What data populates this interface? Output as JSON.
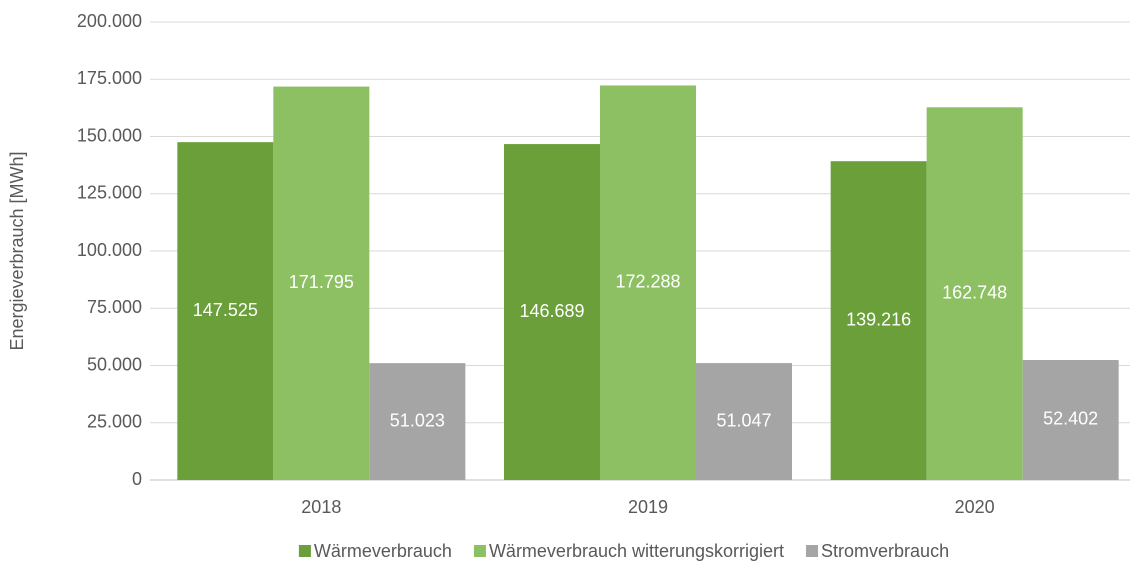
{
  "chart_data": {
    "type": "bar",
    "y_label": "Energieverbrauch [MWh]",
    "categories": [
      "2018",
      "2019",
      "2020"
    ],
    "series": [
      {
        "name": "Wärmeverbrauch",
        "color": "#6a9f3a",
        "values": [
          147525,
          146689,
          139216
        ],
        "value_labels": [
          "147.525",
          "146.689",
          "139.216"
        ]
      },
      {
        "name": "Wärmeverbrauch witterungskorrigiert",
        "color": "#8cc063",
        "values": [
          171795,
          172288,
          162748
        ],
        "value_labels": [
          "171.795",
          "172.288",
          "162.748"
        ]
      },
      {
        "name": "Stromverbrauch",
        "color": "#a5a5a5",
        "values": [
          51023,
          51047,
          52402
        ],
        "value_labels": [
          "51.023",
          "51.047",
          "52.402"
        ]
      }
    ],
    "ylim": [
      0,
      200000
    ],
    "yticks": [
      0,
      {
        "value": 25000,
        "label": "25.000"
      },
      {
        "value": 50000,
        "label": "50.000"
      },
      {
        "value": 75000,
        "label": "75.000"
      },
      {
        "value": 100000,
        "label": "100.000"
      },
      {
        "value": 125000,
        "label": "125.000"
      },
      {
        "value": 150000,
        "label": "150.000"
      },
      {
        "value": 175000,
        "label": "175.000"
      },
      {
        "value": 200000,
        "label": "200.000"
      }
    ],
    "grid": true,
    "legend": "bottom"
  }
}
